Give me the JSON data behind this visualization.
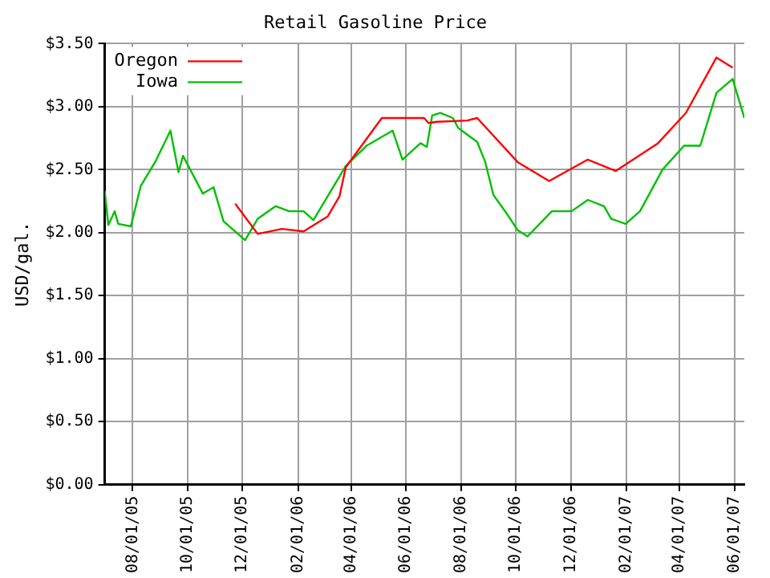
{
  "chart_data": {
    "type": "line",
    "title": "Retail Gasoline Price",
    "ylabel": "USD/gal.",
    "xlim": [
      "2005-07-01",
      "2007-06-12"
    ],
    "xticks": [
      {
        "value": "2005-08-01",
        "label": "08/01/05"
      },
      {
        "value": "2005-10-01",
        "label": "10/01/05"
      },
      {
        "value": "2005-12-01",
        "label": "12/01/05"
      },
      {
        "value": "2006-02-01",
        "label": "02/01/06"
      },
      {
        "value": "2006-04-01",
        "label": "04/01/06"
      },
      {
        "value": "2006-06-01",
        "label": "06/01/06"
      },
      {
        "value": "2006-08-01",
        "label": "08/01/06"
      },
      {
        "value": "2006-10-01",
        "label": "10/01/06"
      },
      {
        "value": "2006-12-01",
        "label": "12/01/06"
      },
      {
        "value": "2007-02-01",
        "label": "02/01/07"
      },
      {
        "value": "2007-04-01",
        "label": "04/01/07"
      },
      {
        "value": "2007-06-01",
        "label": "06/01/07"
      }
    ],
    "ylim": [
      0,
      3.5
    ],
    "yticks": [
      {
        "value": 0,
        "label": "$0.00"
      },
      {
        "value": 0.5,
        "label": "$0.50"
      },
      {
        "value": 1,
        "label": "$1.00"
      },
      {
        "value": 1.5,
        "label": "$1.50"
      },
      {
        "value": 2,
        "label": "$2.00"
      },
      {
        "value": 2.5,
        "label": "$2.50"
      },
      {
        "value": 3,
        "label": "$3.00"
      },
      {
        "value": 3.5,
        "label": "$3.50"
      }
    ],
    "grid": true,
    "legend": "top left",
    "marker": "none",
    "line_style": "solid",
    "series": [
      {
        "name": "Oregon",
        "color": "#ff0000",
        "x": [
          "2005-11-23",
          "2005-12-18",
          "2006-01-14",
          "2006-02-07",
          "2006-03-06",
          "2006-03-19",
          "2006-03-26",
          "2006-05-05",
          "2006-06-21",
          "2006-06-26",
          "2006-07-05",
          "2006-08-08",
          "2006-08-19",
          "2006-10-03",
          "2006-11-07",
          "2006-12-20",
          "2007-01-20",
          "2007-03-08",
          "2007-04-08",
          "2007-05-12",
          "2007-05-30"
        ],
        "values": [
          2.23,
          1.99,
          2.03,
          2.01,
          2.13,
          2.29,
          2.52,
          2.91,
          2.91,
          2.87,
          2.88,
          2.89,
          2.91,
          2.56,
          2.41,
          2.58,
          2.49,
          2.71,
          2.95,
          3.39,
          3.31
        ]
      },
      {
        "name": "Iowa",
        "color": "#00c000",
        "x": [
          "2005-07-01",
          "2005-07-05",
          "2005-07-12",
          "2005-07-16",
          "2005-07-30",
          "2005-08-10",
          "2005-08-26",
          "2005-09-12",
          "2005-09-21",
          "2005-09-26",
          "2005-10-18",
          "2005-10-30",
          "2005-11-10",
          "2005-12-04",
          "2005-12-18",
          "2006-01-07",
          "2006-01-22",
          "2006-02-07",
          "2006-02-18",
          "2006-03-26",
          "2006-04-18",
          "2006-05-17",
          "2006-05-28",
          "2006-06-17",
          "2006-06-24",
          "2006-06-30",
          "2006-07-09",
          "2006-07-23",
          "2006-07-29",
          "2006-08-19",
          "2006-08-28",
          "2006-09-06",
          "2006-09-21",
          "2006-10-03",
          "2006-10-14",
          "2006-11-10",
          "2006-12-02",
          "2006-12-20",
          "2007-01-07",
          "2007-01-15",
          "2007-01-31",
          "2007-02-16",
          "2007-03-13",
          "2007-04-06",
          "2007-04-24",
          "2007-05-12",
          "2007-05-30",
          "2007-06-12"
        ],
        "values": [
          2.33,
          2.06,
          2.17,
          2.07,
          2.05,
          2.37,
          2.56,
          2.81,
          2.48,
          2.61,
          2.31,
          2.36,
          2.09,
          1.94,
          2.11,
          2.21,
          2.17,
          2.17,
          2.1,
          2.53,
          2.69,
          2.81,
          2.58,
          2.71,
          2.68,
          2.93,
          2.95,
          2.91,
          2.83,
          2.72,
          2.56,
          2.3,
          2.15,
          2.02,
          1.97,
          2.17,
          2.17,
          2.26,
          2.21,
          2.11,
          2.07,
          2.17,
          2.5,
          2.69,
          2.69,
          3.11,
          3.22,
          2.91
        ]
      }
    ]
  }
}
